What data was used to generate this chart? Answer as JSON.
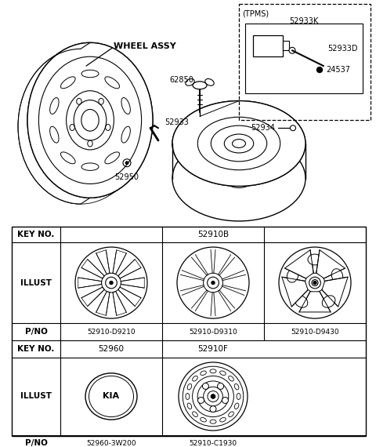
{
  "bg_color": "#ffffff",
  "line_color": "#000000",
  "table": {
    "key_no_1": "52910B",
    "key_no_2a": "52960",
    "key_no_2b": "52910F",
    "pno_row1": [
      "52910-D9210",
      "52910-D9310",
      "52910-D9430"
    ],
    "pno_row2": [
      "52960-3W200",
      "52910-C1930"
    ]
  },
  "parts": {
    "wheel_assy_label": "WHEEL ASSY",
    "labels": [
      "62850",
      "52933",
      "52950",
      "52933K",
      "52933D",
      "24537",
      "52934"
    ],
    "tpms_label": "(TPMS)"
  }
}
